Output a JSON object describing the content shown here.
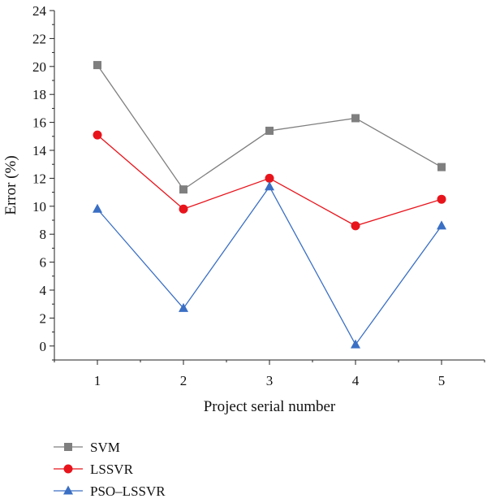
{
  "chart_data": {
    "type": "line",
    "xlabel": "Project serial number",
    "ylabel": "Error (%)",
    "x": [
      1,
      2,
      3,
      4,
      5
    ],
    "xlim": [
      0.5,
      5.5
    ],
    "ylim": [
      -1,
      24
    ],
    "yticks": [
      0,
      2,
      4,
      6,
      8,
      10,
      12,
      14,
      16,
      18,
      20,
      22,
      24
    ],
    "xticks": [
      1,
      2,
      3,
      4,
      5
    ],
    "grid": false,
    "legend_position": "bottom-left",
    "series": [
      {
        "name": "SVM",
        "values": [
          20.1,
          11.2,
          15.4,
          16.3,
          12.8
        ],
        "color": "#7f7f7f",
        "marker": "square"
      },
      {
        "name": "LSSVR",
        "values": [
          15.1,
          9.8,
          12.0,
          8.6,
          10.5
        ],
        "color": "#e8141c",
        "marker": "circle"
      },
      {
        "name": "PSO–LSSVR",
        "values": [
          9.8,
          2.7,
          11.4,
          0.1,
          8.6
        ],
        "color": "#3a6fc4",
        "marker": "triangle"
      }
    ]
  }
}
